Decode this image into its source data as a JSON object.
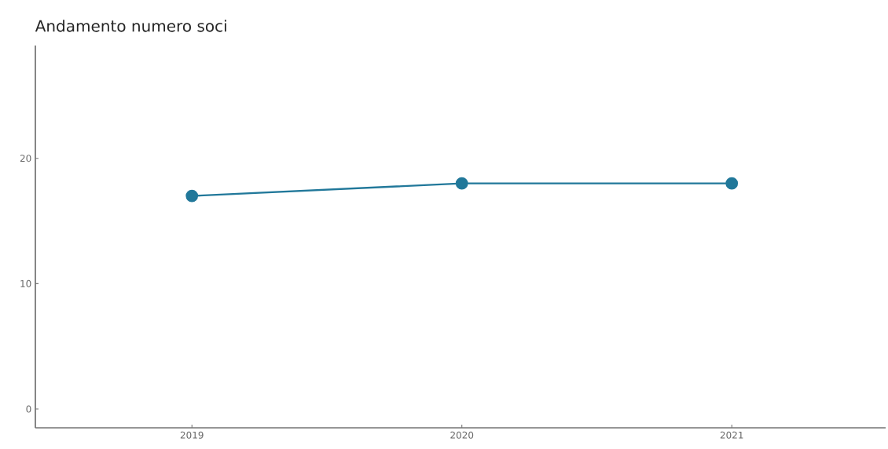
{
  "chart_data": {
    "type": "line",
    "title": "Andamento numero soci",
    "categories": [
      "2019",
      "2020",
      "2021"
    ],
    "series": [
      {
        "color": "#21789a",
        "values": [
          17,
          18,
          18
        ]
      }
    ],
    "ylim": [
      -1.5,
      29
    ],
    "yticks": [
      0,
      10,
      20
    ],
    "marker": "circle",
    "grid": false
  }
}
